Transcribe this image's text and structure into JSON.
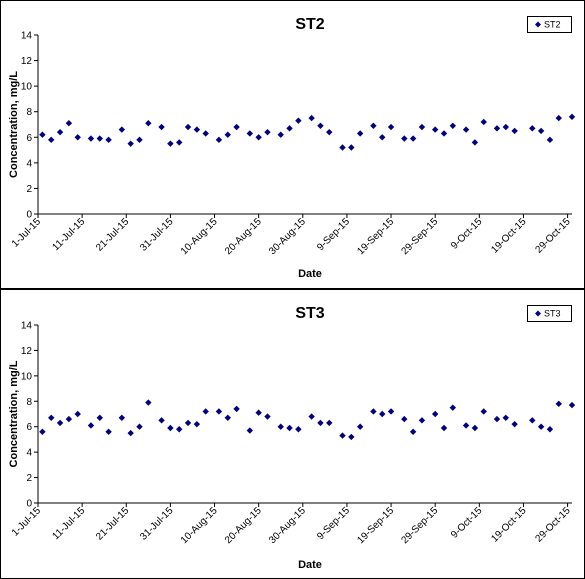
{
  "chart_data": [
    {
      "type": "scatter",
      "title": "ST2",
      "xlabel": "Date",
      "ylabel": "Concentration, mg/L",
      "ylim": [
        0,
        14
      ],
      "y_ticks": [
        0,
        2,
        4,
        6,
        8,
        10,
        12,
        14
      ],
      "xlim": [
        "2015-07-01",
        "2015-10-30"
      ],
      "x_tick_labels": [
        "1-Jul-15",
        "11-Jul-15",
        "21-Jul-15",
        "31-Jul-15",
        "10-Aug-15",
        "20-Aug-15",
        "30-Aug-15",
        "9-Sep-15",
        "19-Sep-15",
        "29-Sep-15",
        "9-Oct-15",
        "19-Oct-15",
        "29-Oct-15"
      ],
      "legend": "top-right",
      "marker": "diamond",
      "color": "#000080",
      "series": [
        {
          "name": "ST2",
          "x": [
            "2015-07-02",
            "2015-07-04",
            "2015-07-06",
            "2015-07-08",
            "2015-07-10",
            "2015-07-13",
            "2015-07-15",
            "2015-07-17",
            "2015-07-20",
            "2015-07-22",
            "2015-07-24",
            "2015-07-26",
            "2015-07-29",
            "2015-07-31",
            "2015-08-02",
            "2015-08-04",
            "2015-08-06",
            "2015-08-08",
            "2015-08-11",
            "2015-08-13",
            "2015-08-15",
            "2015-08-18",
            "2015-08-20",
            "2015-08-22",
            "2015-08-25",
            "2015-08-27",
            "2015-08-29",
            "2015-09-01",
            "2015-09-03",
            "2015-09-05",
            "2015-09-08",
            "2015-09-10",
            "2015-09-12",
            "2015-09-15",
            "2015-09-17",
            "2015-09-19",
            "2015-09-22",
            "2015-09-24",
            "2015-09-26",
            "2015-09-29",
            "2015-10-01",
            "2015-10-03",
            "2015-10-06",
            "2015-10-08",
            "2015-10-10",
            "2015-10-13",
            "2015-10-15",
            "2015-10-17",
            "2015-10-21",
            "2015-10-23",
            "2015-10-25",
            "2015-10-27",
            "2015-10-30"
          ],
          "y": [
            6.2,
            5.8,
            6.4,
            7.1,
            6.0,
            5.9,
            5.9,
            5.8,
            6.6,
            5.5,
            5.8,
            7.1,
            6.8,
            5.5,
            5.6,
            6.8,
            6.6,
            6.3,
            5.8,
            6.2,
            6.8,
            6.3,
            6.0,
            6.4,
            6.2,
            6.7,
            7.3,
            7.5,
            6.9,
            6.4,
            5.2,
            5.2,
            6.3,
            6.9,
            6.0,
            6.8,
            5.9,
            5.9,
            6.8,
            6.6,
            6.3,
            6.9,
            6.6,
            5.6,
            7.2,
            6.7,
            6.8,
            6.5,
            6.7,
            6.5,
            5.8,
            7.5,
            7.6
          ]
        }
      ]
    },
    {
      "type": "scatter",
      "title": "ST3",
      "xlabel": "Date",
      "ylabel": "Concentration, mg/L",
      "ylim": [
        0,
        14
      ],
      "y_ticks": [
        0,
        2,
        4,
        6,
        8,
        10,
        12,
        14
      ],
      "xlim": [
        "2015-07-01",
        "2015-10-30"
      ],
      "x_tick_labels": [
        "1-Jul-15",
        "11-Jul-15",
        "21-Jul-15",
        "31-Jul-15",
        "10-Aug-15",
        "20-Aug-15",
        "30-Aug-15",
        "9-Sep-15",
        "19-Sep-15",
        "29-Sep-15",
        "9-Oct-15",
        "19-Oct-15",
        "29-Oct-15"
      ],
      "legend": "top-right",
      "marker": "diamond",
      "color": "#000080",
      "series": [
        {
          "name": "ST3",
          "x": [
            "2015-07-02",
            "2015-07-04",
            "2015-07-06",
            "2015-07-08",
            "2015-07-10",
            "2015-07-13",
            "2015-07-15",
            "2015-07-17",
            "2015-07-20",
            "2015-07-22",
            "2015-07-24",
            "2015-07-26",
            "2015-07-29",
            "2015-07-31",
            "2015-08-02",
            "2015-08-04",
            "2015-08-06",
            "2015-08-08",
            "2015-08-11",
            "2015-08-13",
            "2015-08-15",
            "2015-08-18",
            "2015-08-20",
            "2015-08-22",
            "2015-08-25",
            "2015-08-27",
            "2015-08-29",
            "2015-09-01",
            "2015-09-03",
            "2015-09-05",
            "2015-09-08",
            "2015-09-10",
            "2015-09-12",
            "2015-09-15",
            "2015-09-17",
            "2015-09-19",
            "2015-09-22",
            "2015-09-24",
            "2015-09-26",
            "2015-09-29",
            "2015-10-01",
            "2015-10-03",
            "2015-10-06",
            "2015-10-08",
            "2015-10-10",
            "2015-10-13",
            "2015-10-15",
            "2015-10-17",
            "2015-10-21",
            "2015-10-23",
            "2015-10-25",
            "2015-10-27",
            "2015-10-30"
          ],
          "y": [
            5.6,
            6.7,
            6.3,
            6.6,
            7.0,
            6.1,
            6.7,
            5.6,
            6.7,
            5.5,
            6.0,
            7.9,
            6.5,
            5.9,
            5.8,
            6.3,
            6.2,
            7.2,
            7.2,
            6.7,
            7.4,
            5.7,
            7.1,
            6.8,
            6.0,
            5.9,
            5.8,
            6.8,
            6.3,
            6.3,
            5.3,
            5.2,
            6.0,
            7.2,
            7.0,
            7.2,
            6.6,
            5.6,
            6.5,
            7.0,
            5.9,
            7.5,
            6.1,
            5.9,
            7.2,
            6.6,
            6.7,
            6.2,
            6.5,
            6.0,
            5.8,
            7.8,
            7.7
          ]
        }
      ]
    }
  ]
}
